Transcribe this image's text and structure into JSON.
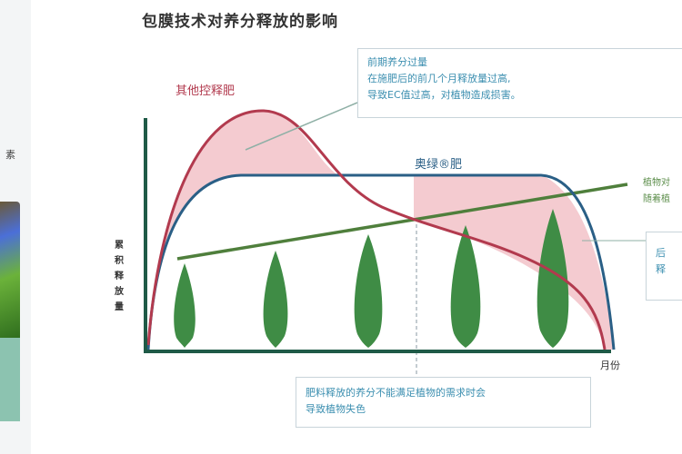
{
  "title": "包膜技术对养分释放的影响",
  "labels": {
    "other_fertilizer": "其他控释肥",
    "osmocote": "奥绿®肥",
    "y_axis": "累积释放量",
    "x_axis": "月份",
    "plant_demand_line1": "植物对",
    "plant_demand_line2": "随着植"
  },
  "callouts": {
    "early_excess": [
      "前期养分过量",
      "在施肥后的前几个月释放量过高,",
      "导致EC值过高，对植物造成损害。"
    ],
    "late_deficit": [
      "肥料释放的养分不能满足植物的需求时会",
      "导致植物失色"
    ],
    "right_partial": [
      "后",
      "释"
    ]
  },
  "side_panel": {
    "partial_text": "素"
  },
  "colors": {
    "other_curve": "#b23a4e",
    "osmocote_curve": "#2a5f86",
    "demand_line": "#4f7f3c",
    "fill": "#f2c2c8",
    "tree": "#3f8c45",
    "axis": "#1f5a47"
  }
}
